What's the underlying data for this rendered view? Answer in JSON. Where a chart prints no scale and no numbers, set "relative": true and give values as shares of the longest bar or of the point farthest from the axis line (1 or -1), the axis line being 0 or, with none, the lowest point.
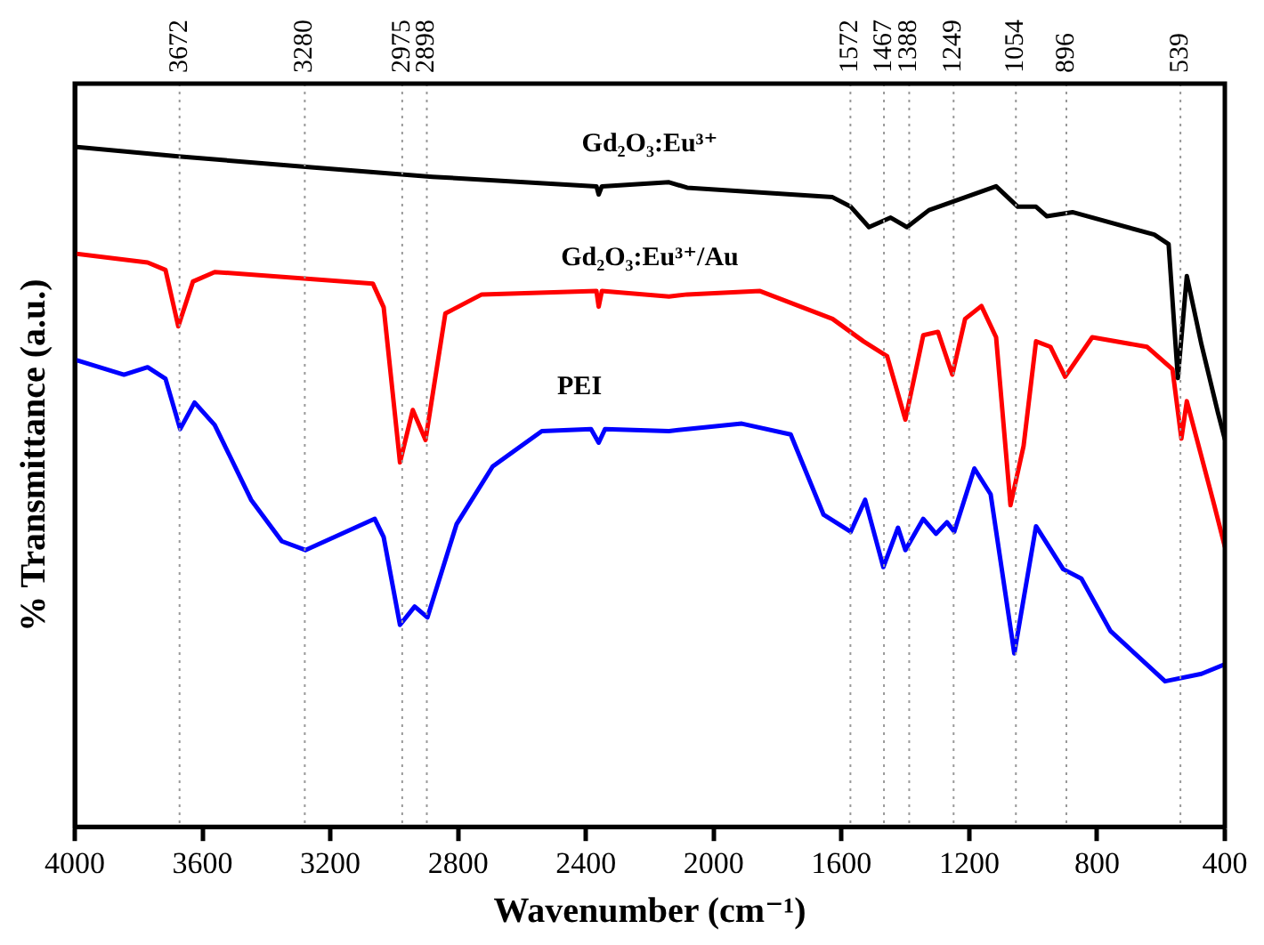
{
  "chart_data": {
    "type": "line",
    "xlabel": "Wavenumber (cm⁻¹)",
    "ylabel": "% Transmittance (a.u.)",
    "relative": true,
    "xlim": [
      4000,
      400
    ],
    "xticks": [
      4000,
      3600,
      3200,
      2800,
      2400,
      2000,
      1600,
      1200,
      800,
      400
    ],
    "series": [
      {
        "name": "Gd₂O₃:Eu³⁺",
        "color": "#000000",
        "x": [
          4000,
          3676,
          3260,
          2880,
          2367,
          2360,
          2350,
          2140,
          2083,
          1628,
          1571,
          1514,
          1446,
          1395,
          1326,
          1116,
          1048,
          991,
          957,
          877,
          621,
          576,
          547,
          519,
          473,
          422,
          400
        ],
        "values": [
          1.0,
          0.986,
          0.97,
          0.956,
          0.942,
          0.93,
          0.942,
          0.948,
          0.94,
          0.926,
          0.912,
          0.882,
          0.896,
          0.882,
          0.907,
          0.942,
          0.912,
          0.912,
          0.898,
          0.904,
          0.871,
          0.857,
          0.66,
          0.81,
          0.709,
          0.61,
          0.57
        ]
      },
      {
        "name": "Gd₂O₃:Eu³⁺/Au",
        "color": "#ff0000",
        "x": [
          4000,
          3772,
          3716,
          3676,
          3630,
          3562,
          3067,
          3033,
          2982,
          2942,
          2902,
          2840,
          2726,
          2367,
          2360,
          2350,
          2140,
          2083,
          1855,
          1628,
          1531,
          1457,
          1400,
          1344,
          1298,
          1253,
          1213,
          1162,
          1116,
          1071,
          1030,
          991,
          946,
          900,
          815,
          644,
          564,
          536,
          519,
          433,
          400
        ],
        "values": [
          0.843,
          0.83,
          0.819,
          0.736,
          0.802,
          0.816,
          0.799,
          0.764,
          0.536,
          0.613,
          0.569,
          0.755,
          0.783,
          0.788,
          0.765,
          0.788,
          0.78,
          0.783,
          0.788,
          0.747,
          0.714,
          0.692,
          0.599,
          0.723,
          0.728,
          0.665,
          0.747,
          0.766,
          0.72,
          0.473,
          0.56,
          0.714,
          0.706,
          0.662,
          0.72,
          0.706,
          0.673,
          0.571,
          0.626,
          0.473,
          0.412
        ]
      },
      {
        "name": "PEI",
        "color": "#0000ff",
        "x": [
          4000,
          3846,
          3772,
          3716,
          3670,
          3625,
          3562,
          3448,
          3352,
          3278,
          3061,
          3033,
          2982,
          2936,
          2896,
          2805,
          2692,
          2538,
          2384,
          2360,
          2340,
          2140,
          2083,
          1912,
          1759,
          1656,
          1571,
          1526,
          1469,
          1423,
          1400,
          1344,
          1304,
          1270,
          1247,
          1184,
          1133,
          1059,
          991,
          906,
          849,
          758,
          587,
          473,
          400
        ],
        "values": [
          0.687,
          0.665,
          0.676,
          0.659,
          0.585,
          0.624,
          0.591,
          0.481,
          0.42,
          0.407,
          0.453,
          0.426,
          0.297,
          0.324,
          0.308,
          0.445,
          0.53,
          0.582,
          0.585,
          0.565,
          0.585,
          0.582,
          0.585,
          0.593,
          0.577,
          0.459,
          0.434,
          0.481,
          0.382,
          0.44,
          0.407,
          0.453,
          0.431,
          0.448,
          0.434,
          0.527,
          0.489,
          0.255,
          0.442,
          0.379,
          0.365,
          0.288,
          0.214,
          0.225,
          0.239
        ]
      }
    ],
    "ref_lines": [
      {
        "axis": "x",
        "value": 3672,
        "label": "3672",
        "color": "#999999",
        "line_style": "dotted"
      },
      {
        "axis": "x",
        "value": 3280,
        "label": "3280",
        "color": "#999999",
        "line_style": "dotted"
      },
      {
        "axis": "x",
        "value": 2975,
        "label": "2975",
        "color": "#999999",
        "line_style": "dotted"
      },
      {
        "axis": "x",
        "value": 2898,
        "label": "2898",
        "color": "#999999",
        "line_style": "dotted"
      },
      {
        "axis": "x",
        "value": 1572,
        "label": "1572",
        "color": "#999999",
        "line_style": "dotted"
      },
      {
        "axis": "x",
        "value": 1467,
        "label": "1467",
        "color": "#999999",
        "line_style": "dotted"
      },
      {
        "axis": "x",
        "value": 1388,
        "label": "1388",
        "color": "#999999",
        "line_style": "dotted"
      },
      {
        "axis": "x",
        "value": 1249,
        "label": "1249",
        "color": "#999999",
        "line_style": "dotted"
      },
      {
        "axis": "x",
        "value": 1054,
        "label": "1054",
        "color": "#999999",
        "line_style": "dotted"
      },
      {
        "axis": "x",
        "value": 896,
        "label": "896",
        "color": "#999999",
        "line_style": "dotted"
      },
      {
        "axis": "x",
        "value": 539,
        "label": "539",
        "color": "#999999",
        "line_style": "dotted"
      }
    ]
  }
}
